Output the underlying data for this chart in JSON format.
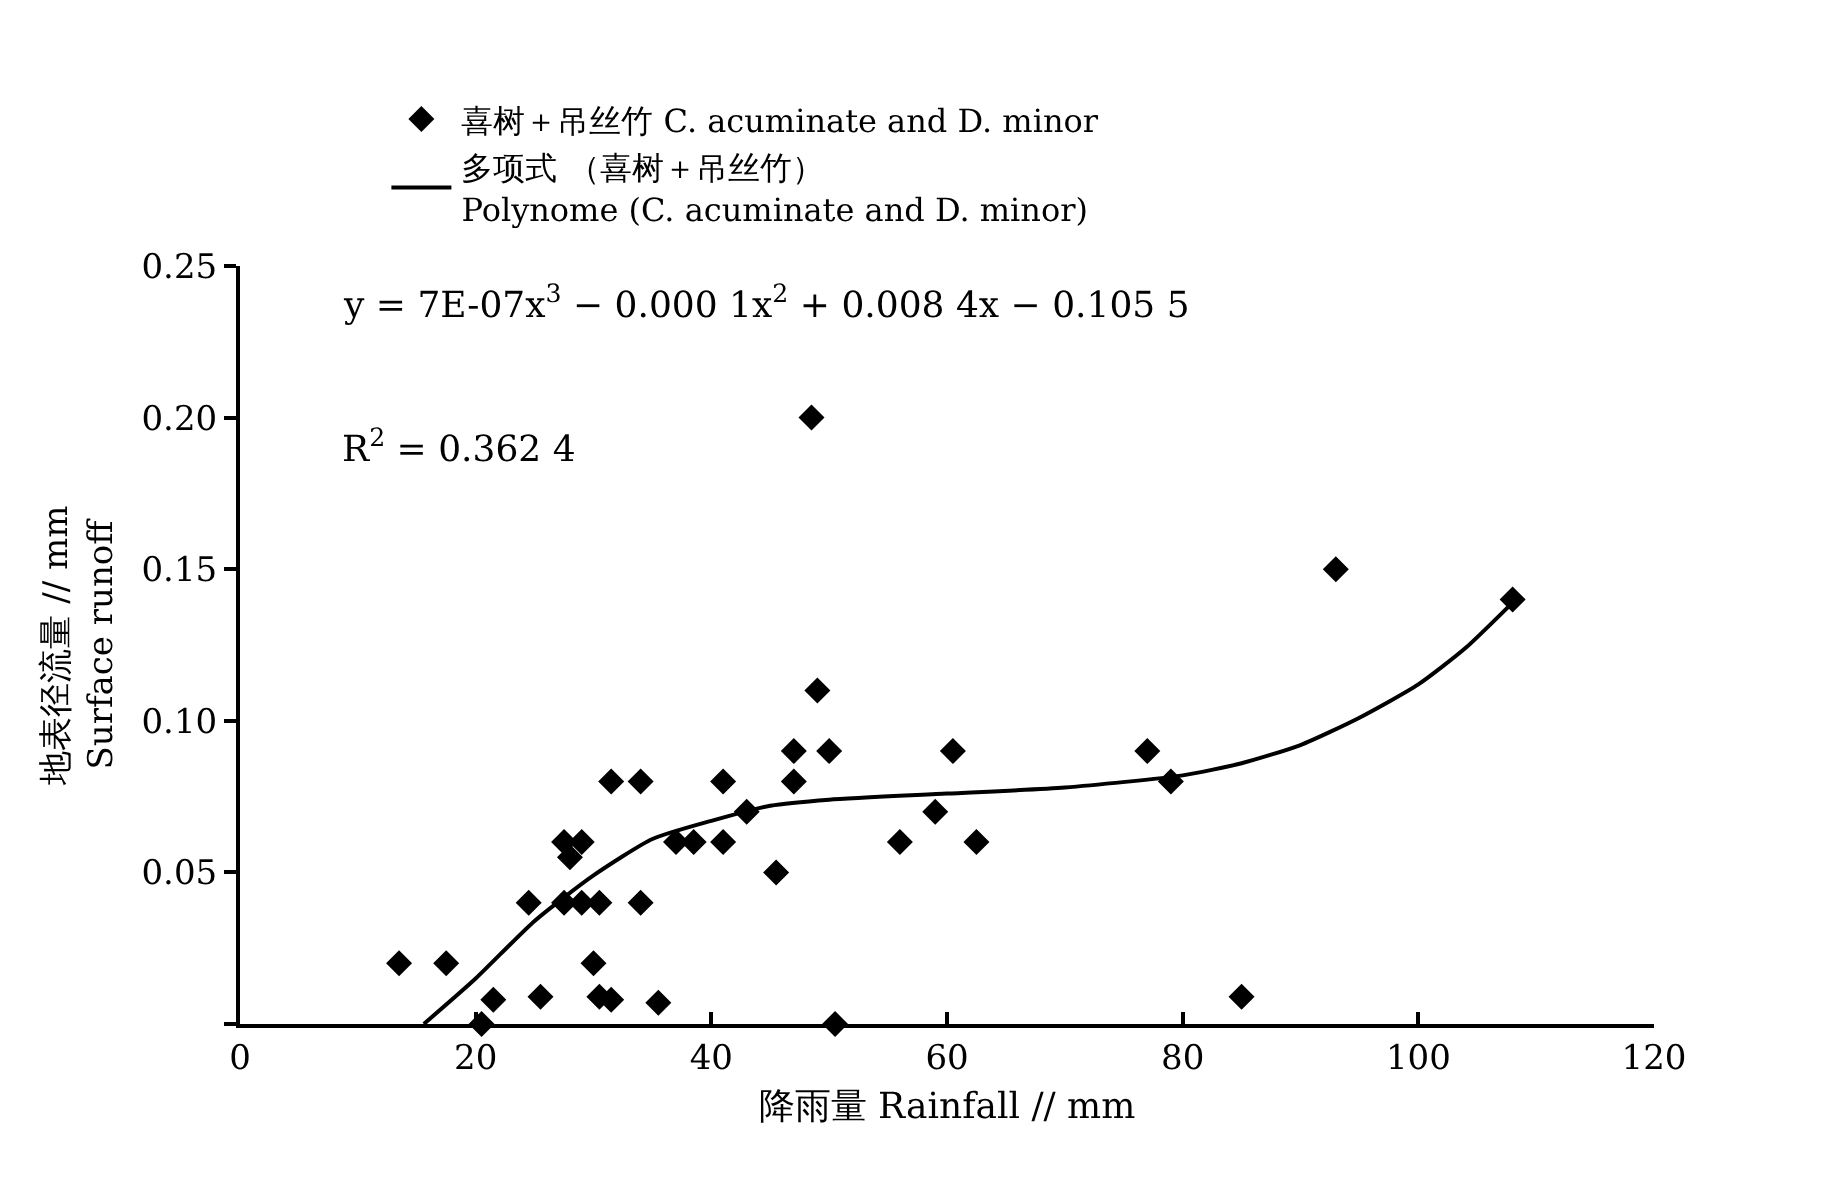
{
  "chart_data": {
    "type": "scatter",
    "xlabel": "降雨量 Rainfall // mm",
    "ylabel": "地表径流量 // mm\nSurface runoff",
    "xlim": [
      0,
      120
    ],
    "xticks": [
      0,
      20,
      40,
      60,
      80,
      100,
      120
    ],
    "ylim": [
      0,
      0.25
    ],
    "yticks": [
      {
        "value": 0,
        "label": null
      },
      0.05,
      {
        "value": 0.1,
        "label": "0.10"
      },
      0.15,
      {
        "value": 0.2,
        "label": "0.20"
      },
      0.25
    ],
    "legend": "top",
    "marker": "diamond",
    "annotations": [
      "y = 7E-07x$^{3}$ − 0.000 1x$^{2}$ + 0.008 4x − 0.105 5",
      "R$^{2}$ = 0.362 4"
    ],
    "series": [
      {
        "name": "喜树＋吊丝竹 C. acuminate and D. minor",
        "color": "#000000",
        "x": [
          13.5,
          17.5,
          20.5,
          21.5,
          24.5,
          25.5,
          27.5,
          29,
          30.5,
          34,
          27.5,
          29,
          28,
          30,
          30.5,
          31.5,
          35.5,
          31.5,
          34,
          41,
          37,
          38.5,
          41,
          43,
          45.5,
          47,
          47,
          50,
          48.5,
          49,
          50.5,
          56,
          59,
          60.5,
          62.5,
          77,
          79,
          85,
          93,
          108
        ],
        "values": [
          0.02,
          0.02,
          0,
          0.008,
          0.04,
          0.009,
          0.04,
          0.04,
          0.04,
          0.04,
          0.06,
          0.06,
          0.055,
          0.02,
          0.009,
          0.008,
          0.007,
          0.08,
          0.08,
          0.08,
          0.06,
          0.06,
          0.06,
          0.07,
          0.05,
          0.09,
          0.08,
          0.09,
          0.2,
          0.11,
          0,
          0.06,
          0.07,
          0.09,
          0.06,
          0.09,
          0.08,
          0.009,
          0.15,
          0.14
        ]
      },
      {
        "name": "多项式 （喜树＋吊丝竹）\nPolynome (C. acuminate and D. minor)",
        "color": "#000000",
        "type": "line",
        "marker": "none",
        "line_style": "solid",
        "x": [
          15.6,
          20,
          25,
          30,
          35,
          40,
          45,
          50,
          60,
          70,
          80,
          85,
          90,
          95,
          100,
          104,
          108
        ],
        "values": [
          0,
          0.015,
          0.034,
          0.049,
          0.061,
          0.067,
          0.072,
          0.074,
          0.076,
          0.078,
          0.082,
          0.086,
          0.092,
          0.101,
          0.112,
          0.124,
          0.139
        ]
      }
    ]
  }
}
